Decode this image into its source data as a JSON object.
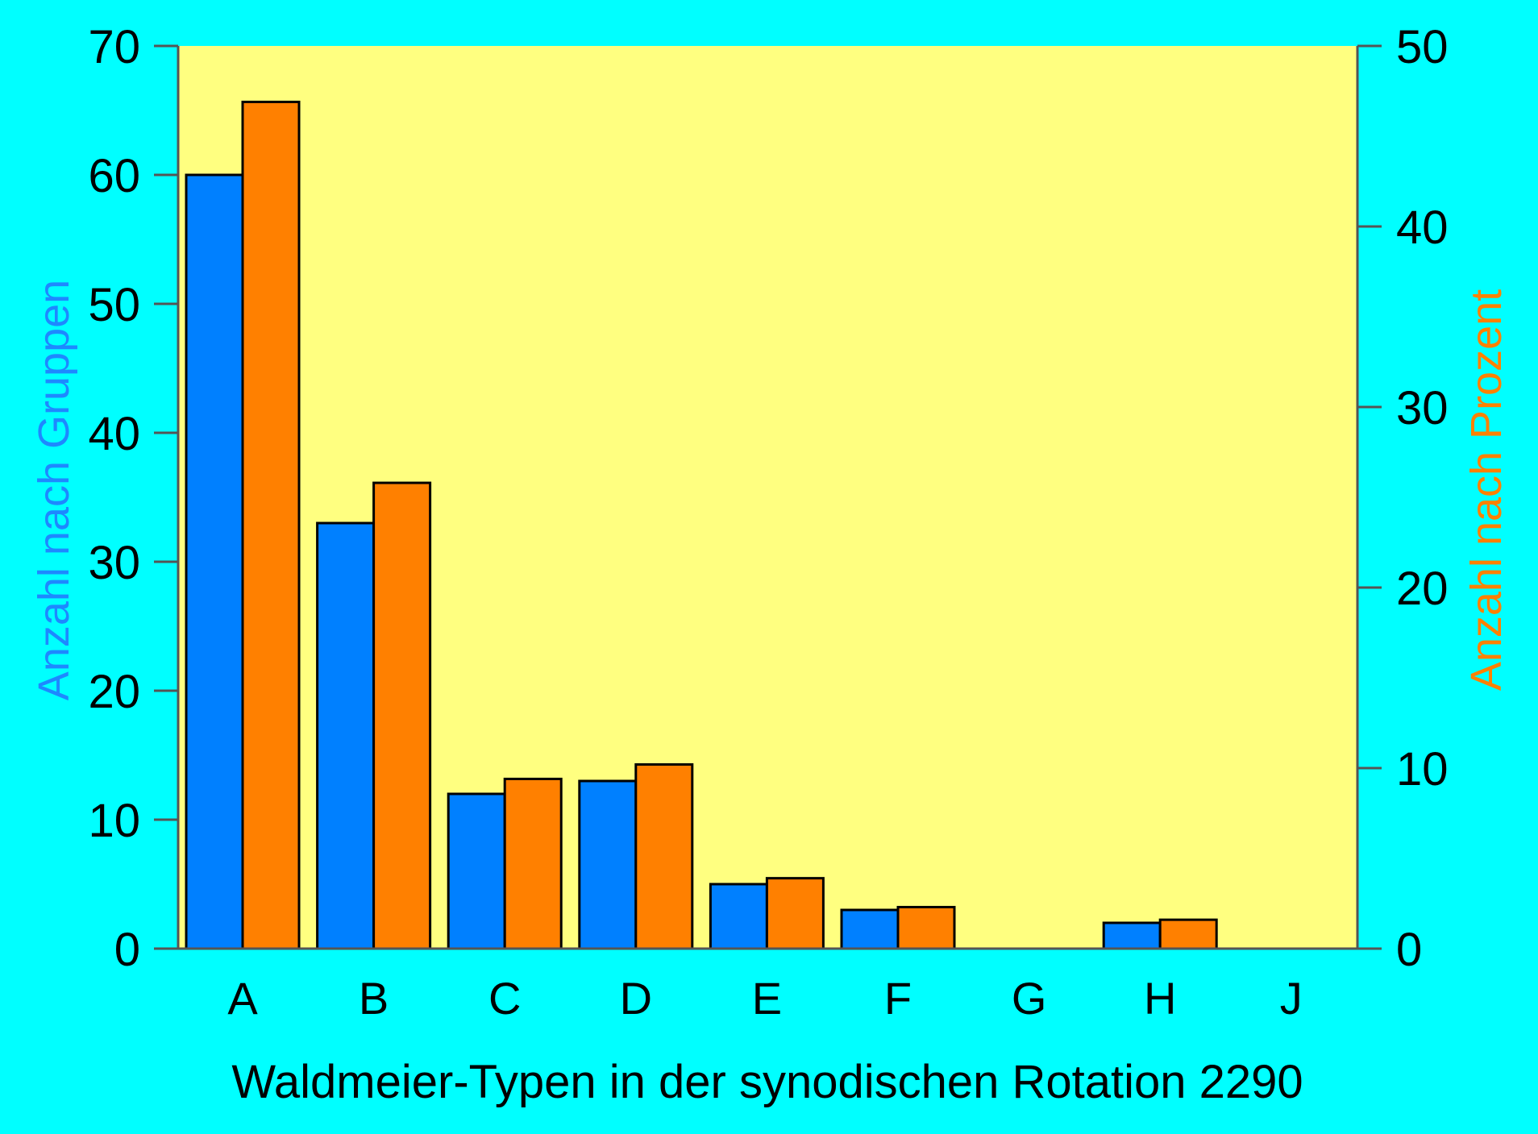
{
  "colors": {
    "background": "#00FFFF",
    "plot_background": "#FFFF80",
    "series_groups": "#0080FF",
    "series_percent": "#FF8000",
    "axis": "#555555",
    "text": "#000000"
  },
  "chart_data": {
    "type": "bar",
    "title": "",
    "xlabel": "Waldmeier-Typen in der synodischen Rotation 2290",
    "ylabel": "Anzahl nach Gruppen",
    "ylabel_right": "Anzahl nach Prozent",
    "categories": [
      "A",
      "B",
      "C",
      "D",
      "E",
      "F",
      "G",
      "H",
      "J"
    ],
    "series": [
      {
        "name": "Anzahl nach Gruppen",
        "axis": "left",
        "color": "#0080FF",
        "values": [
          60,
          33,
          12,
          13,
          5,
          3,
          0,
          2,
          0
        ]
      },
      {
        "name": "Anzahl nach Prozent",
        "axis": "right",
        "color": "#FF8000",
        "values": [
          46.9,
          25.8,
          9.4,
          10.2,
          3.9,
          2.3,
          0,
          1.6,
          0
        ]
      }
    ],
    "ylim": [
      0,
      70
    ],
    "ylim_right": [
      0,
      50
    ],
    "yticks": [
      0,
      10,
      20,
      30,
      40,
      50,
      60,
      70
    ],
    "yticks_right": [
      0,
      10,
      20,
      30,
      40,
      50
    ],
    "grid": false,
    "legend": "none"
  }
}
